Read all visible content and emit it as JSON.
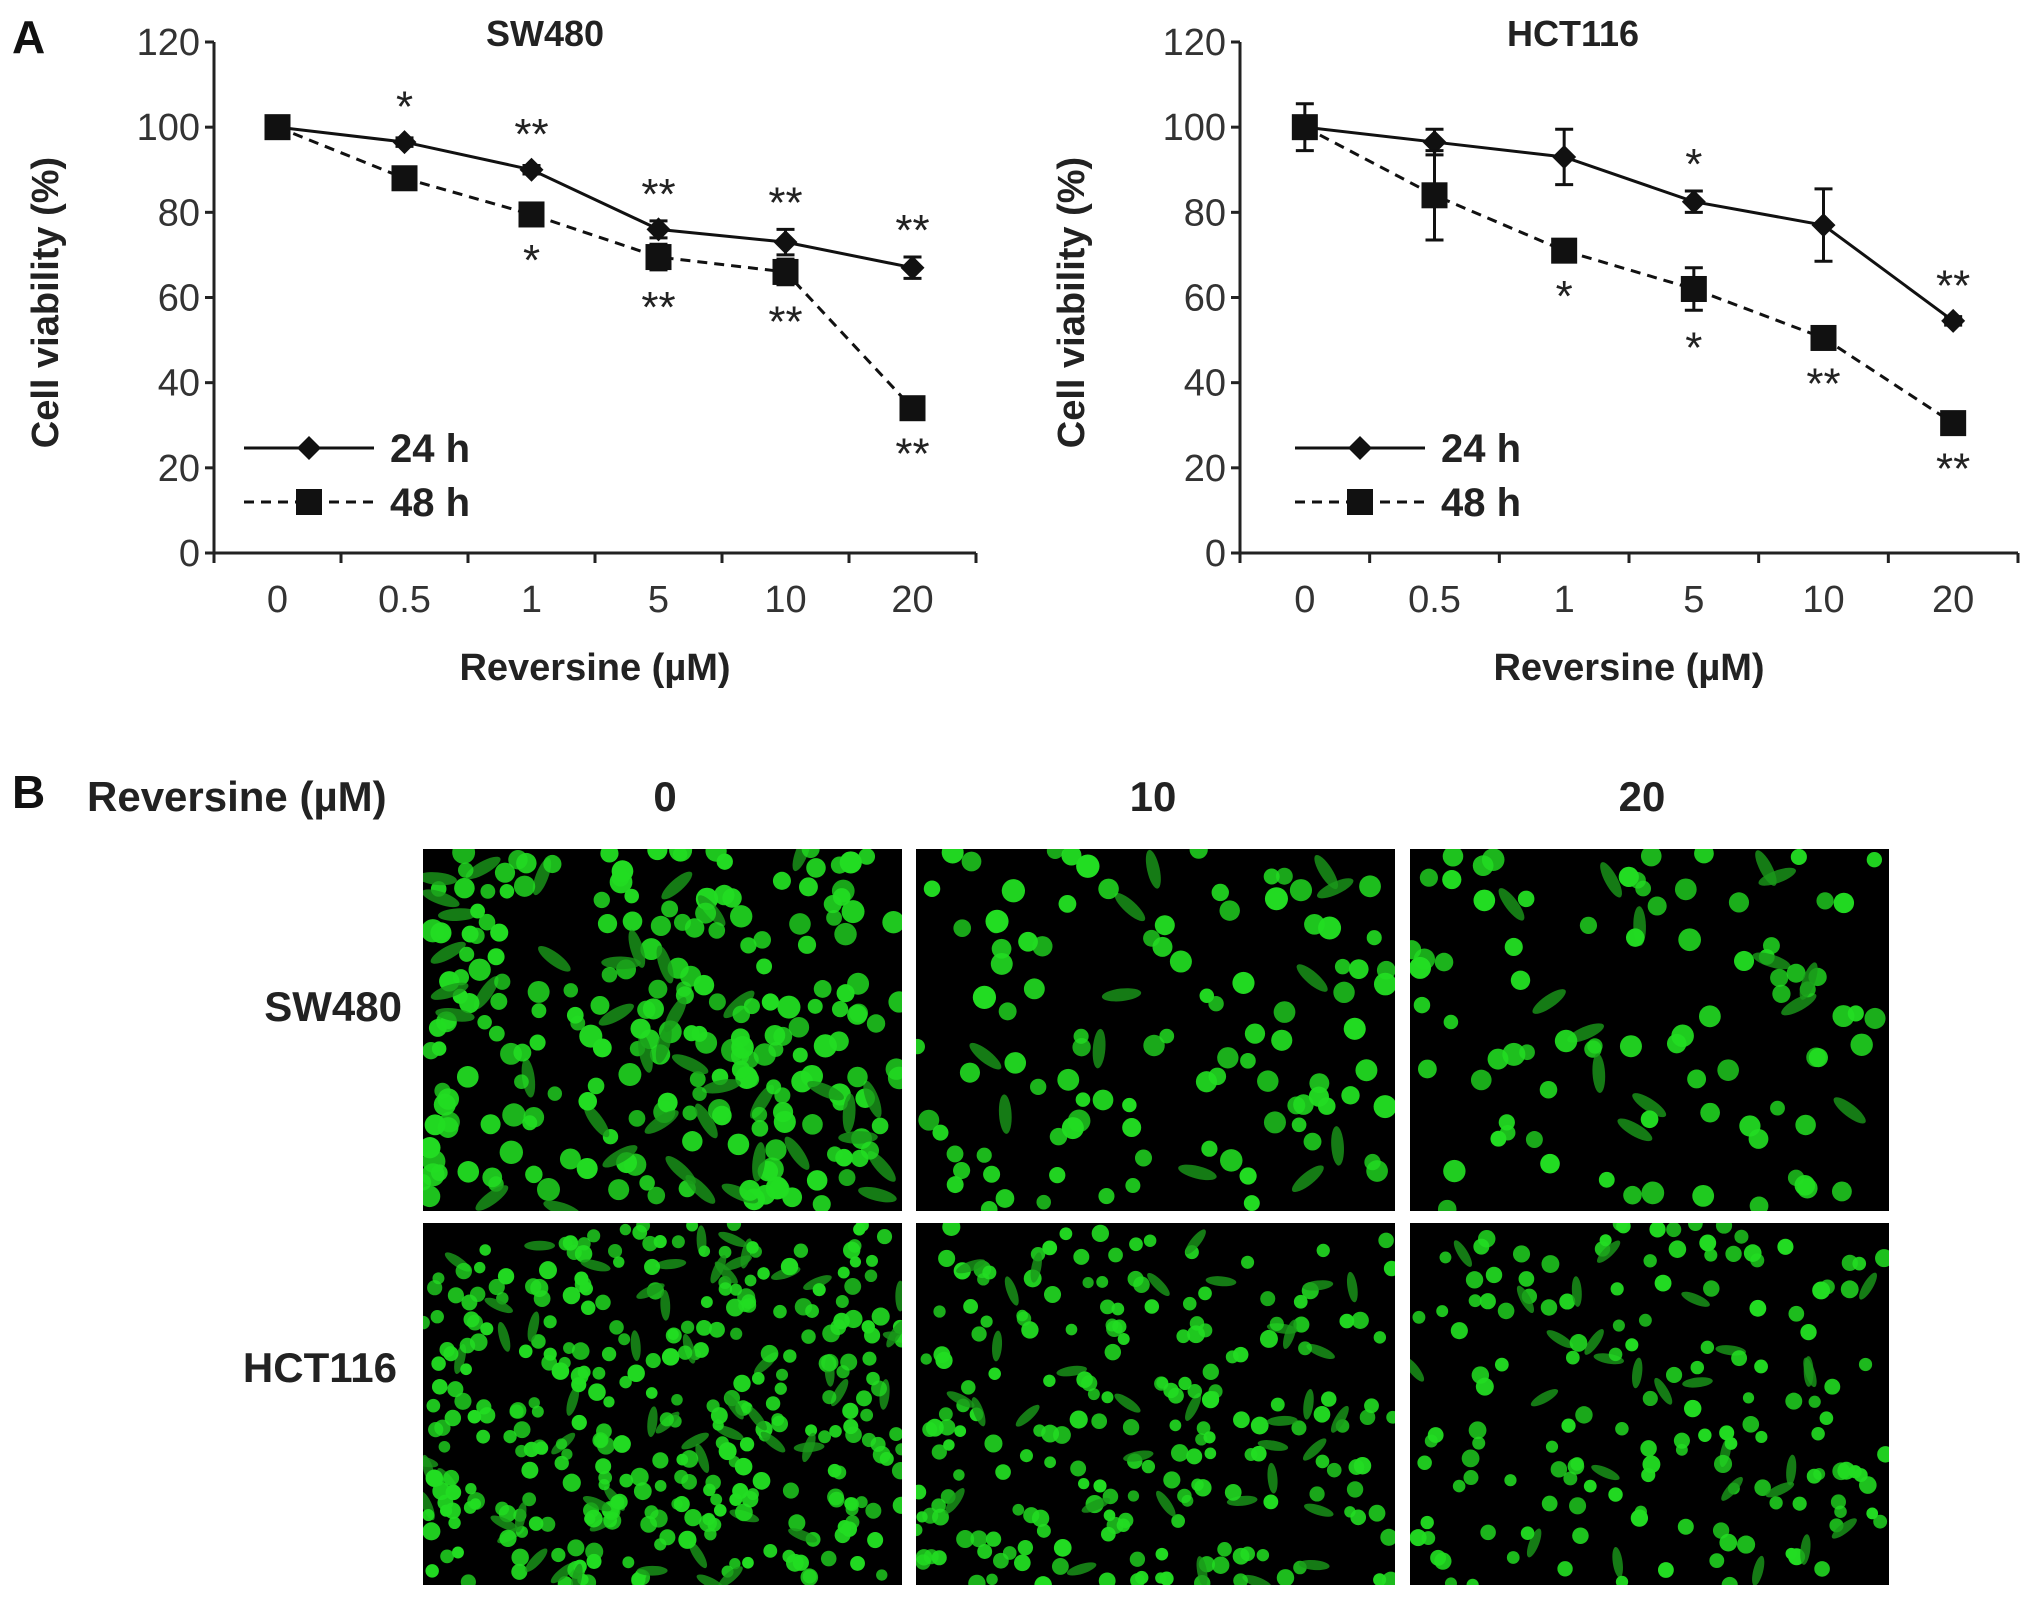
{
  "panels": {
    "a_letter": "A",
    "b_letter": "B"
  },
  "chart_data": [
    {
      "type": "line",
      "title": "SW480",
      "xlabel": "Reversine (µM)",
      "ylabel": "Cell viability (%)",
      "categories": [
        "0",
        "0.5",
        "1",
        "5",
        "10",
        "20"
      ],
      "ylim": [
        0,
        120
      ],
      "yticks": [
        0,
        20,
        40,
        60,
        80,
        100,
        120
      ],
      "legend_position": "bottom-left",
      "grid": false,
      "series": [
        {
          "name": "24 h",
          "marker": "diamond",
          "line": "solid",
          "values": [
            100,
            96.5,
            90,
            76,
            73,
            67
          ],
          "errors": [
            0,
            1,
            1,
            2,
            3,
            2.5
          ],
          "annotations": [
            "",
            "*",
            "**",
            "**",
            "**",
            "**"
          ],
          "annotation_side": "above"
        },
        {
          "name": "48 h",
          "marker": "square",
          "line": "dashed",
          "values": [
            100,
            88,
            79.5,
            69.5,
            66,
            34
          ],
          "errors": [
            0,
            1,
            1,
            3,
            3,
            1
          ],
          "annotations": [
            "",
            "",
            "*",
            "**",
            "**",
            "**"
          ],
          "annotation_side": "below"
        }
      ]
    },
    {
      "type": "line",
      "title": "HCT116",
      "xlabel": "Reversine (µM)",
      "ylabel": "Cell viability (%)",
      "categories": [
        "0",
        "0.5",
        "1",
        "5",
        "10",
        "20"
      ],
      "ylim": [
        0,
        120
      ],
      "yticks": [
        0,
        20,
        40,
        60,
        80,
        100,
        120
      ],
      "legend_position": "bottom-left",
      "grid": false,
      "series": [
        {
          "name": "24 h",
          "marker": "diamond",
          "line": "solid",
          "values": [
            100,
            96.5,
            93,
            82.5,
            77,
            54.5
          ],
          "errors": [
            1,
            3,
            6.5,
            2.5,
            8.5,
            1
          ],
          "annotations": [
            "",
            "",
            "",
            "*",
            "",
            "**"
          ],
          "annotation_side": "above"
        },
        {
          "name": "48 h",
          "marker": "square",
          "line": "dashed",
          "values": [
            100,
            84,
            71,
            62,
            50.5,
            30.5
          ],
          "errors": [
            5.5,
            10.5,
            1,
            5,
            1,
            1
          ],
          "annotations": [
            "",
            "",
            "*",
            "*",
            "**",
            "**"
          ],
          "annotation_side": "below"
        }
      ]
    }
  ],
  "micrographs": {
    "header_label": "Reversine (µM)",
    "columns": [
      "0",
      "10",
      "20"
    ],
    "rows": [
      "SW480",
      "HCT116"
    ],
    "fluorescence_color": "#22dd22",
    "background_color": "#000000"
  }
}
